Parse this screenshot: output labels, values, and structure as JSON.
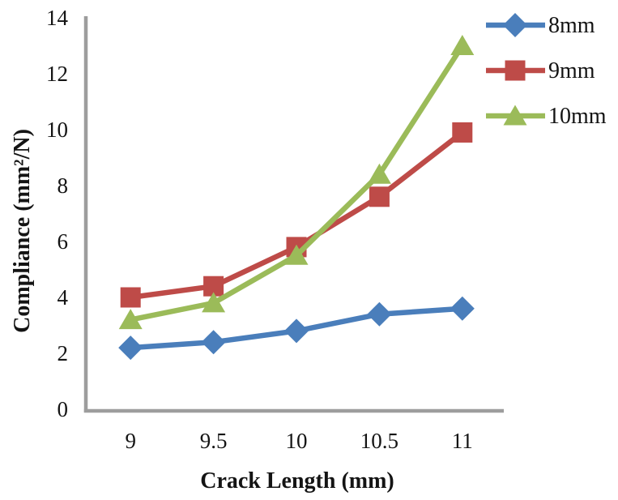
{
  "figure": {
    "background": "#ffffff",
    "text_color": "#141414",
    "axis_color": "#9d9d9d"
  },
  "chart_data": {
    "type": "line",
    "title": "",
    "xlabel": "Crack Length (mm)",
    "ylabel": "Compliance (mm²/N)",
    "categories": [
      9,
      9.5,
      10,
      10.5,
      11
    ],
    "x_tick_labels": [
      "9",
      "9.5",
      "10",
      "10.5",
      "11"
    ],
    "y_ticks": [
      0,
      2,
      4,
      6,
      8,
      10,
      12,
      14
    ],
    "y_tick_labels": [
      "0",
      "2",
      "4",
      "6",
      "8",
      "10",
      "12",
      "14"
    ],
    "ylim": [
      0,
      14
    ],
    "grid": false,
    "legend_position": "top-right",
    "series": [
      {
        "name": "8mm",
        "marker": "diamond",
        "color": "#4a7ebb",
        "values": [
          2.2,
          2.4,
          2.8,
          3.4,
          3.6
        ]
      },
      {
        "name": "9mm",
        "marker": "square",
        "color": "#be4b48",
        "values": [
          4.0,
          4.4,
          5.8,
          7.6,
          9.9
        ]
      },
      {
        "name": "10mm",
        "marker": "triangle",
        "color": "#9bbb59",
        "values": [
          3.2,
          3.8,
          5.5,
          8.4,
          13.0
        ]
      }
    ]
  }
}
